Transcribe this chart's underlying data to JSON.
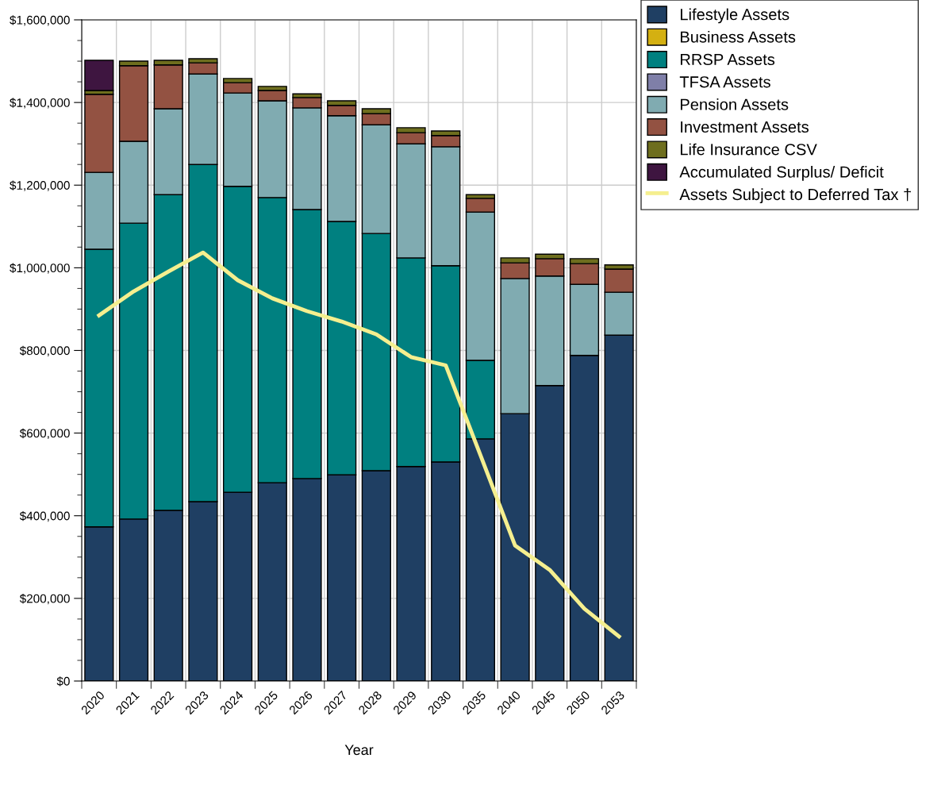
{
  "chart_data": {
    "type": "bar",
    "stacked": true,
    "xlabel": "Year",
    "categories": [
      "2020",
      "2021",
      "2022",
      "2023",
      "2024",
      "2025",
      "2026",
      "2027",
      "2028",
      "2029",
      "2030",
      "2035",
      "2040",
      "2045",
      "2050",
      "2053"
    ],
    "ylim": [
      0,
      1600000
    ],
    "yticks": [
      {
        "value": 0,
        "label": "$0"
      },
      {
        "value": 200000,
        "label": "$200,000"
      },
      {
        "value": 400000,
        "label": "$400,000"
      },
      {
        "value": 600000,
        "label": "$600,000"
      },
      {
        "value": 800000,
        "label": "$800,000"
      },
      {
        "value": 1000000,
        "label": "$1,000,000"
      },
      {
        "value": 1200000,
        "label": "$1,200,000"
      },
      {
        "value": 1400000,
        "label": "$1,400,000"
      },
      {
        "value": 1600000,
        "label": "$1,600,000"
      }
    ],
    "grid": true,
    "legend": "top right",
    "series": [
      {
        "name": "Lifestyle Assets",
        "color": "#1f3f63",
        "values": [
          373000,
          392000,
          413000,
          434000,
          457000,
          480000,
          490000,
          499000,
          509000,
          519000,
          530000,
          586000,
          647000,
          715000,
          788000,
          837000
        ]
      },
      {
        "name": "Business Assets",
        "color": "#d4b011",
        "values": [
          0,
          0,
          0,
          0,
          0,
          0,
          0,
          0,
          0,
          0,
          0,
          0,
          0,
          0,
          0,
          0
        ]
      },
      {
        "name": "RRSP Assets",
        "color": "#008080",
        "values": [
          672000,
          716000,
          764000,
          816000,
          740000,
          690000,
          651000,
          613000,
          574000,
          505000,
          475000,
          190000,
          0,
          0,
          0,
          0
        ]
      },
      {
        "name": "TFSA Assets",
        "color": "#7f7fa8",
        "values": [
          0,
          0,
          0,
          0,
          0,
          0,
          0,
          0,
          0,
          0,
          0,
          0,
          0,
          0,
          0,
          0
        ]
      },
      {
        "name": "Pension Assets",
        "color": "#80abb1",
        "values": [
          186000,
          198000,
          208000,
          219000,
          226000,
          234000,
          246000,
          256000,
          263000,
          276000,
          288000,
          359000,
          327000,
          265000,
          172000,
          104000
        ]
      },
      {
        "name": "Investment Assets",
        "color": "#935242",
        "values": [
          189000,
          183000,
          106000,
          27000,
          25000,
          25000,
          25000,
          25000,
          27000,
          27000,
          27000,
          33000,
          38000,
          42000,
          50000,
          56000
        ]
      },
      {
        "name": "Life Insurance CSV",
        "color": "#6e6e1e",
        "values": [
          9000,
          11000,
          11000,
          10000,
          10000,
          10000,
          9000,
          11000,
          12000,
          12000,
          11000,
          9000,
          12000,
          11000,
          12000,
          10000
        ]
      },
      {
        "name": "Accumulated Surplus/ Deficit",
        "color": "#3e1540",
        "values": [
          73000,
          0,
          0,
          0,
          0,
          0,
          0,
          0,
          0,
          0,
          0,
          0,
          0,
          0,
          0,
          0
        ]
      },
      {
        "name": "Assets Subject to Deferred Tax †",
        "type": "line",
        "color": "#f5ef8f",
        "values": [
          885000,
          943000,
          991000,
          1037000,
          970000,
          926000,
          895000,
          870000,
          839000,
          784000,
          764000,
          547000,
          328000,
          269000,
          175000,
          108000
        ]
      }
    ]
  }
}
